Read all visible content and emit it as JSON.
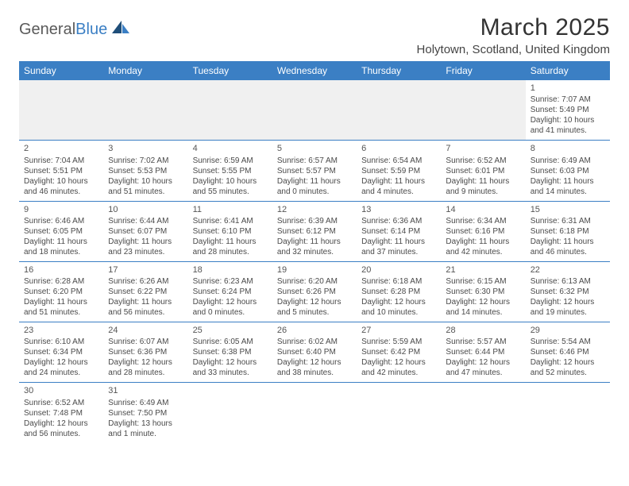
{
  "logo": {
    "word1": "General",
    "word2": "Blue"
  },
  "title": "March 2025",
  "location": "Holytown, Scotland, United Kingdom",
  "colors": {
    "header_bg": "#3b7fc4",
    "header_fg": "#ffffff",
    "border": "#3b7fc4",
    "empty_bg": "#f0f0f0",
    "text": "#4a4a4a"
  },
  "day_headers": [
    "Sunday",
    "Monday",
    "Tuesday",
    "Wednesday",
    "Thursday",
    "Friday",
    "Saturday"
  ],
  "weeks": [
    [
      null,
      null,
      null,
      null,
      null,
      null,
      {
        "n": "1",
        "sr": "Sunrise: 7:07 AM",
        "ss": "Sunset: 5:49 PM",
        "d1": "Daylight: 10 hours",
        "d2": "and 41 minutes."
      }
    ],
    [
      {
        "n": "2",
        "sr": "Sunrise: 7:04 AM",
        "ss": "Sunset: 5:51 PM",
        "d1": "Daylight: 10 hours",
        "d2": "and 46 minutes."
      },
      {
        "n": "3",
        "sr": "Sunrise: 7:02 AM",
        "ss": "Sunset: 5:53 PM",
        "d1": "Daylight: 10 hours",
        "d2": "and 51 minutes."
      },
      {
        "n": "4",
        "sr": "Sunrise: 6:59 AM",
        "ss": "Sunset: 5:55 PM",
        "d1": "Daylight: 10 hours",
        "d2": "and 55 minutes."
      },
      {
        "n": "5",
        "sr": "Sunrise: 6:57 AM",
        "ss": "Sunset: 5:57 PM",
        "d1": "Daylight: 11 hours",
        "d2": "and 0 minutes."
      },
      {
        "n": "6",
        "sr": "Sunrise: 6:54 AM",
        "ss": "Sunset: 5:59 PM",
        "d1": "Daylight: 11 hours",
        "d2": "and 4 minutes."
      },
      {
        "n": "7",
        "sr": "Sunrise: 6:52 AM",
        "ss": "Sunset: 6:01 PM",
        "d1": "Daylight: 11 hours",
        "d2": "and 9 minutes."
      },
      {
        "n": "8",
        "sr": "Sunrise: 6:49 AM",
        "ss": "Sunset: 6:03 PM",
        "d1": "Daylight: 11 hours",
        "d2": "and 14 minutes."
      }
    ],
    [
      {
        "n": "9",
        "sr": "Sunrise: 6:46 AM",
        "ss": "Sunset: 6:05 PM",
        "d1": "Daylight: 11 hours",
        "d2": "and 18 minutes."
      },
      {
        "n": "10",
        "sr": "Sunrise: 6:44 AM",
        "ss": "Sunset: 6:07 PM",
        "d1": "Daylight: 11 hours",
        "d2": "and 23 minutes."
      },
      {
        "n": "11",
        "sr": "Sunrise: 6:41 AM",
        "ss": "Sunset: 6:10 PM",
        "d1": "Daylight: 11 hours",
        "d2": "and 28 minutes."
      },
      {
        "n": "12",
        "sr": "Sunrise: 6:39 AM",
        "ss": "Sunset: 6:12 PM",
        "d1": "Daylight: 11 hours",
        "d2": "and 32 minutes."
      },
      {
        "n": "13",
        "sr": "Sunrise: 6:36 AM",
        "ss": "Sunset: 6:14 PM",
        "d1": "Daylight: 11 hours",
        "d2": "and 37 minutes."
      },
      {
        "n": "14",
        "sr": "Sunrise: 6:34 AM",
        "ss": "Sunset: 6:16 PM",
        "d1": "Daylight: 11 hours",
        "d2": "and 42 minutes."
      },
      {
        "n": "15",
        "sr": "Sunrise: 6:31 AM",
        "ss": "Sunset: 6:18 PM",
        "d1": "Daylight: 11 hours",
        "d2": "and 46 minutes."
      }
    ],
    [
      {
        "n": "16",
        "sr": "Sunrise: 6:28 AM",
        "ss": "Sunset: 6:20 PM",
        "d1": "Daylight: 11 hours",
        "d2": "and 51 minutes."
      },
      {
        "n": "17",
        "sr": "Sunrise: 6:26 AM",
        "ss": "Sunset: 6:22 PM",
        "d1": "Daylight: 11 hours",
        "d2": "and 56 minutes."
      },
      {
        "n": "18",
        "sr": "Sunrise: 6:23 AM",
        "ss": "Sunset: 6:24 PM",
        "d1": "Daylight: 12 hours",
        "d2": "and 0 minutes."
      },
      {
        "n": "19",
        "sr": "Sunrise: 6:20 AM",
        "ss": "Sunset: 6:26 PM",
        "d1": "Daylight: 12 hours",
        "d2": "and 5 minutes."
      },
      {
        "n": "20",
        "sr": "Sunrise: 6:18 AM",
        "ss": "Sunset: 6:28 PM",
        "d1": "Daylight: 12 hours",
        "d2": "and 10 minutes."
      },
      {
        "n": "21",
        "sr": "Sunrise: 6:15 AM",
        "ss": "Sunset: 6:30 PM",
        "d1": "Daylight: 12 hours",
        "d2": "and 14 minutes."
      },
      {
        "n": "22",
        "sr": "Sunrise: 6:13 AM",
        "ss": "Sunset: 6:32 PM",
        "d1": "Daylight: 12 hours",
        "d2": "and 19 minutes."
      }
    ],
    [
      {
        "n": "23",
        "sr": "Sunrise: 6:10 AM",
        "ss": "Sunset: 6:34 PM",
        "d1": "Daylight: 12 hours",
        "d2": "and 24 minutes."
      },
      {
        "n": "24",
        "sr": "Sunrise: 6:07 AM",
        "ss": "Sunset: 6:36 PM",
        "d1": "Daylight: 12 hours",
        "d2": "and 28 minutes."
      },
      {
        "n": "25",
        "sr": "Sunrise: 6:05 AM",
        "ss": "Sunset: 6:38 PM",
        "d1": "Daylight: 12 hours",
        "d2": "and 33 minutes."
      },
      {
        "n": "26",
        "sr": "Sunrise: 6:02 AM",
        "ss": "Sunset: 6:40 PM",
        "d1": "Daylight: 12 hours",
        "d2": "and 38 minutes."
      },
      {
        "n": "27",
        "sr": "Sunrise: 5:59 AM",
        "ss": "Sunset: 6:42 PM",
        "d1": "Daylight: 12 hours",
        "d2": "and 42 minutes."
      },
      {
        "n": "28",
        "sr": "Sunrise: 5:57 AM",
        "ss": "Sunset: 6:44 PM",
        "d1": "Daylight: 12 hours",
        "d2": "and 47 minutes."
      },
      {
        "n": "29",
        "sr": "Sunrise: 5:54 AM",
        "ss": "Sunset: 6:46 PM",
        "d1": "Daylight: 12 hours",
        "d2": "and 52 minutes."
      }
    ],
    [
      {
        "n": "30",
        "sr": "Sunrise: 6:52 AM",
        "ss": "Sunset: 7:48 PM",
        "d1": "Daylight: 12 hours",
        "d2": "and 56 minutes."
      },
      {
        "n": "31",
        "sr": "Sunrise: 6:49 AM",
        "ss": "Sunset: 7:50 PM",
        "d1": "Daylight: 13 hours",
        "d2": "and 1 minute."
      },
      null,
      null,
      null,
      null,
      null
    ]
  ]
}
